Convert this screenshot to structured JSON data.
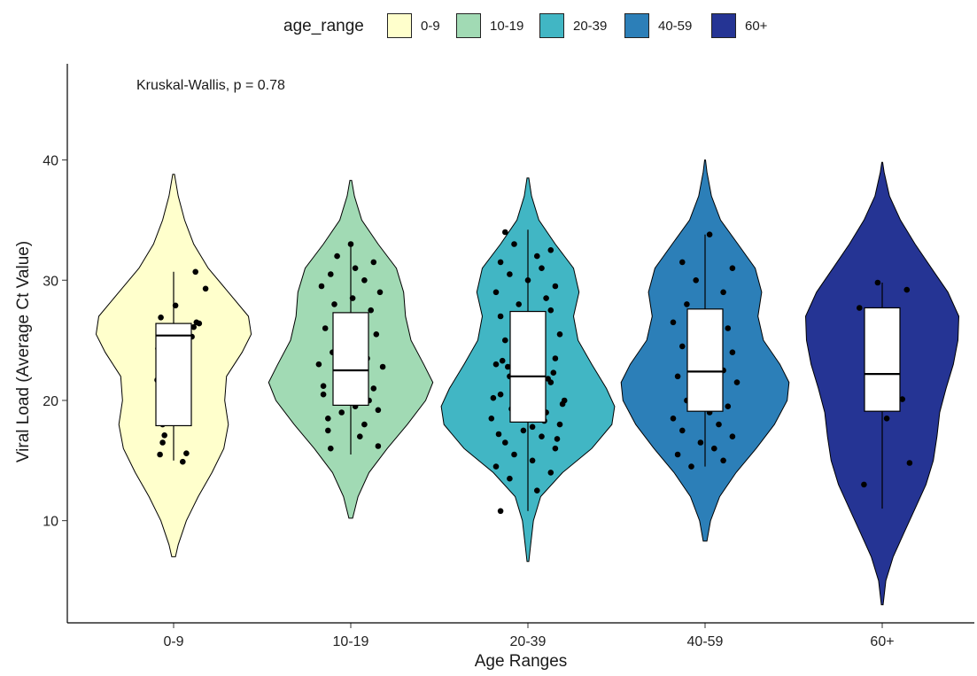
{
  "chart_data": {
    "type": "violin",
    "xlabel": "Age Ranges",
    "ylabel": "Viral Load (Average Ct Value)",
    "ylim": [
      1.5,
      48
    ],
    "yticks": [
      10,
      20,
      30,
      40
    ],
    "grid": false,
    "legend_position": "top",
    "legend_title": "age_range",
    "annotation": "Kruskal-Wallis, p = 0.78",
    "categories": [
      "0-9",
      "10-19",
      "20-39",
      "40-59",
      "60+"
    ],
    "series": [
      {
        "name": "0-9",
        "color": "#FFFFCC",
        "range": [
          7.0,
          38.8
        ],
        "box": {
          "q1": 17.9,
          "median": 25.4,
          "q3": 26.4,
          "whisker_low": 15.0,
          "whisker_high": 30.7
        },
        "density": [
          [
            7.0,
            0.02
          ],
          [
            8.0,
            0.05
          ],
          [
            10.0,
            0.14
          ],
          [
            12.0,
            0.27
          ],
          [
            14.0,
            0.42
          ],
          [
            16.0,
            0.55
          ],
          [
            18.0,
            0.6
          ],
          [
            20.0,
            0.56
          ],
          [
            22.0,
            0.58
          ],
          [
            24.0,
            0.75
          ],
          [
            25.5,
            0.85
          ],
          [
            27.0,
            0.82
          ],
          [
            29.0,
            0.6
          ],
          [
            31.0,
            0.38
          ],
          [
            33.0,
            0.22
          ],
          [
            35.0,
            0.12
          ],
          [
            37.0,
            0.05
          ],
          [
            38.8,
            0.01
          ]
        ],
        "points": [
          [
            0.1,
            14.9
          ],
          [
            -0.15,
            15.5
          ],
          [
            0.14,
            15.6
          ],
          [
            -0.12,
            16.5
          ],
          [
            -0.1,
            17.1
          ],
          [
            -0.12,
            18.0
          ],
          [
            -0.18,
            21.7
          ],
          [
            -0.17,
            24.3
          ],
          [
            0.08,
            25.4
          ],
          [
            0.07,
            25.6
          ],
          [
            0.22,
            26.1
          ],
          [
            0.28,
            26.4
          ],
          [
            0.25,
            26.5
          ],
          [
            -0.14,
            26.9
          ],
          [
            0.02,
            27.9
          ],
          [
            0.2,
            25.3
          ],
          [
            0.35,
            29.3
          ],
          [
            0.24,
            30.7
          ],
          [
            0.0,
            18.8
          ]
        ]
      },
      {
        "name": "10-19",
        "color": "#A1DAB4",
        "range": [
          10.2,
          38.3
        ],
        "box": {
          "q1": 19.6,
          "median": 22.5,
          "q3": 27.3,
          "whisker_low": 15.5,
          "whisker_high": 33.0
        },
        "density": [
          [
            10.2,
            0.02
          ],
          [
            12.0,
            0.08
          ],
          [
            14.0,
            0.2
          ],
          [
            16.0,
            0.4
          ],
          [
            18.0,
            0.62
          ],
          [
            20.0,
            0.82
          ],
          [
            21.5,
            0.9
          ],
          [
            23.0,
            0.8
          ],
          [
            25.0,
            0.66
          ],
          [
            27.0,
            0.6
          ],
          [
            29.0,
            0.58
          ],
          [
            31.0,
            0.5
          ],
          [
            33.0,
            0.3
          ],
          [
            35.0,
            0.12
          ],
          [
            37.0,
            0.04
          ],
          [
            38.3,
            0.01
          ]
        ],
        "points": [
          [
            -0.22,
            16.0
          ],
          [
            0.3,
            16.2
          ],
          [
            -0.25,
            17.5
          ],
          [
            0.15,
            18.0
          ],
          [
            -0.1,
            19.0
          ],
          [
            0.05,
            19.5
          ],
          [
            0.2,
            20.0
          ],
          [
            -0.3,
            20.5
          ],
          [
            0.25,
            21.0
          ],
          [
            -0.15,
            21.5
          ],
          [
            0.1,
            22.0
          ],
          [
            -0.05,
            22.5
          ],
          [
            0.35,
            22.8
          ],
          [
            -0.35,
            23.0
          ],
          [
            0.18,
            23.5
          ],
          [
            -0.2,
            24.0
          ],
          [
            0.08,
            24.5
          ],
          [
            -0.12,
            25.0
          ],
          [
            0.28,
            25.5
          ],
          [
            -0.28,
            26.0
          ],
          [
            0.12,
            26.5
          ],
          [
            -0.08,
            27.0
          ],
          [
            0.22,
            27.5
          ],
          [
            -0.18,
            28.0
          ],
          [
            0.02,
            28.5
          ],
          [
            0.32,
            29.0
          ],
          [
            -0.32,
            29.5
          ],
          [
            0.15,
            30.0
          ],
          [
            -0.22,
            30.5
          ],
          [
            0.05,
            31.0
          ],
          [
            0.25,
            31.5
          ],
          [
            -0.15,
            32.0
          ],
          [
            0.0,
            33.0
          ],
          [
            -0.25,
            18.5
          ],
          [
            0.3,
            19.2
          ],
          [
            -0.3,
            21.2
          ],
          [
            0.1,
            17.0
          ]
        ]
      },
      {
        "name": "20-39",
        "color": "#41B6C4",
        "range": [
          6.6,
          38.5
        ],
        "box": {
          "q1": 18.2,
          "median": 22.0,
          "q3": 27.4,
          "whisker_low": 10.8,
          "whisker_high": 34.2
        },
        "density": [
          [
            6.6,
            0.01
          ],
          [
            8.0,
            0.03
          ],
          [
            10.0,
            0.06
          ],
          [
            12.0,
            0.14
          ],
          [
            14.0,
            0.38
          ],
          [
            16.0,
            0.7
          ],
          [
            18.0,
            0.92
          ],
          [
            19.5,
            0.95
          ],
          [
            21.0,
            0.86
          ],
          [
            23.0,
            0.7
          ],
          [
            25.0,
            0.55
          ],
          [
            27.0,
            0.5
          ],
          [
            29.0,
            0.56
          ],
          [
            31.0,
            0.5
          ],
          [
            33.0,
            0.3
          ],
          [
            35.0,
            0.12
          ],
          [
            37.0,
            0.04
          ],
          [
            38.5,
            0.01
          ]
        ],
        "points": [
          [
            -0.3,
            10.8
          ],
          [
            0.1,
            12.5
          ],
          [
            -0.2,
            13.5
          ],
          [
            0.25,
            14.0
          ],
          [
            -0.35,
            14.5
          ],
          [
            0.05,
            15.0
          ],
          [
            -0.15,
            15.5
          ],
          [
            0.3,
            16.0
          ],
          [
            -0.25,
            16.5
          ],
          [
            0.15,
            17.0
          ],
          [
            -0.05,
            17.5
          ],
          [
            0.35,
            18.0
          ],
          [
            -0.4,
            18.5
          ],
          [
            0.2,
            19.0
          ],
          [
            -0.1,
            19.5
          ],
          [
            0.4,
            20.0
          ],
          [
            -0.3,
            20.5
          ],
          [
            0.0,
            21.0
          ],
          [
            0.25,
            21.5
          ],
          [
            -0.2,
            22.0
          ],
          [
            0.1,
            22.5
          ],
          [
            -0.35,
            23.0
          ],
          [
            0.3,
            23.5
          ],
          [
            -0.05,
            24.0
          ],
          [
            0.15,
            24.5
          ],
          [
            -0.25,
            25.0
          ],
          [
            0.35,
            25.5
          ],
          [
            -0.15,
            26.0
          ],
          [
            0.05,
            26.5
          ],
          [
            -0.3,
            27.0
          ],
          [
            0.25,
            27.5
          ],
          [
            -0.1,
            28.0
          ],
          [
            0.2,
            28.5
          ],
          [
            -0.35,
            29.0
          ],
          [
            0.3,
            29.5
          ],
          [
            0.0,
            30.0
          ],
          [
            -0.2,
            30.5
          ],
          [
            0.15,
            31.0
          ],
          [
            -0.3,
            31.5
          ],
          [
            0.1,
            32.0
          ],
          [
            0.25,
            32.5
          ],
          [
            -0.15,
            33.0
          ],
          [
            -0.25,
            34.0
          ],
          [
            0.05,
            17.8
          ],
          [
            -0.05,
            18.8
          ],
          [
            0.12,
            19.8
          ],
          [
            -0.12,
            20.8
          ],
          [
            0.22,
            21.8
          ],
          [
            -0.22,
            22.8
          ],
          [
            0.32,
            16.8
          ],
          [
            -0.32,
            17.2
          ],
          [
            0.18,
            18.3
          ],
          [
            -0.18,
            19.3
          ],
          [
            0.08,
            20.3
          ],
          [
            -0.08,
            21.3
          ],
          [
            0.28,
            22.3
          ],
          [
            -0.28,
            23.3
          ],
          [
            0.38,
            19.7
          ],
          [
            -0.38,
            20.2
          ]
        ]
      },
      {
        "name": "40-59",
        "color": "#2C7FB8",
        "range": [
          8.3,
          40.0
        ],
        "box": {
          "q1": 19.1,
          "median": 22.4,
          "q3": 27.6,
          "whisker_low": 14.5,
          "whisker_high": 33.8
        },
        "density": [
          [
            8.3,
            0.02
          ],
          [
            10.0,
            0.06
          ],
          [
            12.0,
            0.16
          ],
          [
            14.0,
            0.34
          ],
          [
            16.0,
            0.56
          ],
          [
            18.0,
            0.76
          ],
          [
            20.0,
            0.9
          ],
          [
            21.5,
            0.92
          ],
          [
            23.0,
            0.82
          ],
          [
            25.0,
            0.64
          ],
          [
            27.0,
            0.58
          ],
          [
            29.0,
            0.62
          ],
          [
            31.0,
            0.55
          ],
          [
            33.0,
            0.36
          ],
          [
            35.0,
            0.17
          ],
          [
            37.0,
            0.07
          ],
          [
            39.0,
            0.02
          ],
          [
            40.0,
            0.005
          ]
        ],
        "points": [
          [
            -0.15,
            14.5
          ],
          [
            0.2,
            15.0
          ],
          [
            -0.3,
            15.5
          ],
          [
            0.1,
            16.0
          ],
          [
            -0.05,
            16.5
          ],
          [
            0.3,
            17.0
          ],
          [
            -0.25,
            17.5
          ],
          [
            0.15,
            18.0
          ],
          [
            -0.35,
            18.5
          ],
          [
            0.05,
            19.0
          ],
          [
            0.25,
            19.5
          ],
          [
            -0.2,
            20.0
          ],
          [
            0.1,
            20.5
          ],
          [
            -0.1,
            21.0
          ],
          [
            0.35,
            21.5
          ],
          [
            -0.3,
            22.0
          ],
          [
            0.2,
            22.5
          ],
          [
            -0.15,
            23.0
          ],
          [
            0.05,
            23.5
          ],
          [
            0.3,
            24.0
          ],
          [
            -0.25,
            24.5
          ],
          [
            0.15,
            25.0
          ],
          [
            -0.05,
            25.5
          ],
          [
            0.25,
            26.0
          ],
          [
            -0.35,
            26.5
          ],
          [
            0.1,
            27.0
          ],
          [
            -0.2,
            28.0
          ],
          [
            0.2,
            29.0
          ],
          [
            -0.1,
            30.0
          ],
          [
            0.3,
            31.0
          ],
          [
            -0.25,
            31.5
          ],
          [
            0.05,
            33.8
          ]
        ]
      },
      {
        "name": "60+",
        "color": "#253494",
        "range": [
          3.0,
          39.8
        ],
        "box": {
          "q1": 19.1,
          "median": 22.2,
          "q3": 27.7,
          "whisker_low": 11.0,
          "whisker_high": 29.8
        },
        "density": [
          [
            3.0,
            0.01
          ],
          [
            5.0,
            0.04
          ],
          [
            7.0,
            0.12
          ],
          [
            9.0,
            0.24
          ],
          [
            11.0,
            0.36
          ],
          [
            13.0,
            0.48
          ],
          [
            15.0,
            0.56
          ],
          [
            17.0,
            0.6
          ],
          [
            19.0,
            0.63
          ],
          [
            21.0,
            0.7
          ],
          [
            23.0,
            0.78
          ],
          [
            25.0,
            0.83
          ],
          [
            27.0,
            0.84
          ],
          [
            29.0,
            0.72
          ],
          [
            31.0,
            0.54
          ],
          [
            33.0,
            0.36
          ],
          [
            35.0,
            0.2
          ],
          [
            37.0,
            0.08
          ],
          [
            39.0,
            0.02
          ],
          [
            39.8,
            0.005
          ]
        ],
        "points": [
          [
            -0.2,
            13.0
          ],
          [
            0.3,
            14.8
          ],
          [
            0.05,
            18.5
          ],
          [
            -0.05,
            19.8
          ],
          [
            0.22,
            20.1
          ],
          [
            -0.15,
            22.0
          ],
          [
            -0.25,
            27.7
          ],
          [
            -0.1,
            27.5
          ],
          [
            -0.05,
            29.8
          ],
          [
            0.27,
            29.2
          ]
        ]
      }
    ]
  }
}
